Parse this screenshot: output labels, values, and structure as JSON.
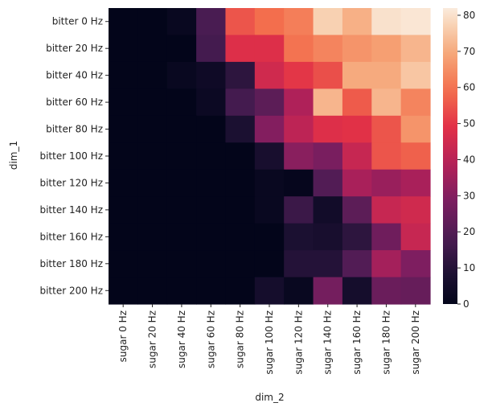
{
  "chart_data": {
    "type": "heatmap",
    "title": "",
    "xlabel": "dim_2",
    "ylabel": "dim_1",
    "rows": [
      "bitter 0 Hz",
      "bitter 20 Hz",
      "bitter 40 Hz",
      "bitter 60 Hz",
      "bitter 80 Hz",
      "bitter 100 Hz",
      "bitter 120 Hz",
      "bitter 140 Hz",
      "bitter 160 Hz",
      "bitter 180 Hz",
      "bitter 200 Hz"
    ],
    "columns": [
      "sugar 0 Hz",
      "sugar 20 Hz",
      "sugar 40 Hz",
      "sugar 60 Hz",
      "sugar 80 Hz",
      "sugar 100 Hz",
      "sugar 120 Hz",
      "sugar 140 Hz",
      "sugar 160 Hz",
      "sugar 180 Hz",
      "sugar 200 Hz"
    ],
    "values": [
      [
        0,
        0,
        2,
        18,
        55,
        59,
        62,
        77,
        71,
        80,
        81
      ],
      [
        0,
        0,
        0,
        17,
        48,
        48,
        60,
        63,
        66,
        68,
        72
      ],
      [
        0,
        0,
        2,
        4,
        12,
        45,
        50,
        54,
        70,
        70,
        75
      ],
      [
        0,
        0,
        0,
        3,
        17,
        22,
        38,
        72,
        56,
        72,
        63
      ],
      [
        0,
        0,
        0,
        0,
        8,
        30,
        41,
        48,
        49,
        55,
        66
      ],
      [
        0,
        0,
        0,
        0,
        0,
        7,
        31,
        28,
        43,
        55,
        57
      ],
      [
        0,
        0,
        0,
        0,
        0,
        2,
        1,
        20,
        37,
        34,
        37
      ],
      [
        0,
        0,
        0,
        0,
        0,
        2,
        15,
        5,
        22,
        43,
        45
      ],
      [
        0,
        0,
        0,
        0,
        0,
        0,
        8,
        7,
        12,
        26,
        43
      ],
      [
        0,
        0,
        0,
        0,
        0,
        0,
        10,
        10,
        20,
        36,
        29
      ],
      [
        0,
        0,
        0,
        0,
        0,
        6,
        2,
        27,
        6,
        25,
        24
      ]
    ],
    "colorbar": {
      "min": 0,
      "max": 82,
      "ticks": [
        0,
        10,
        20,
        30,
        40,
        50,
        60,
        70,
        80
      ]
    },
    "colormap": "rocket",
    "grid": false,
    "legend": "colorbar-right"
  }
}
